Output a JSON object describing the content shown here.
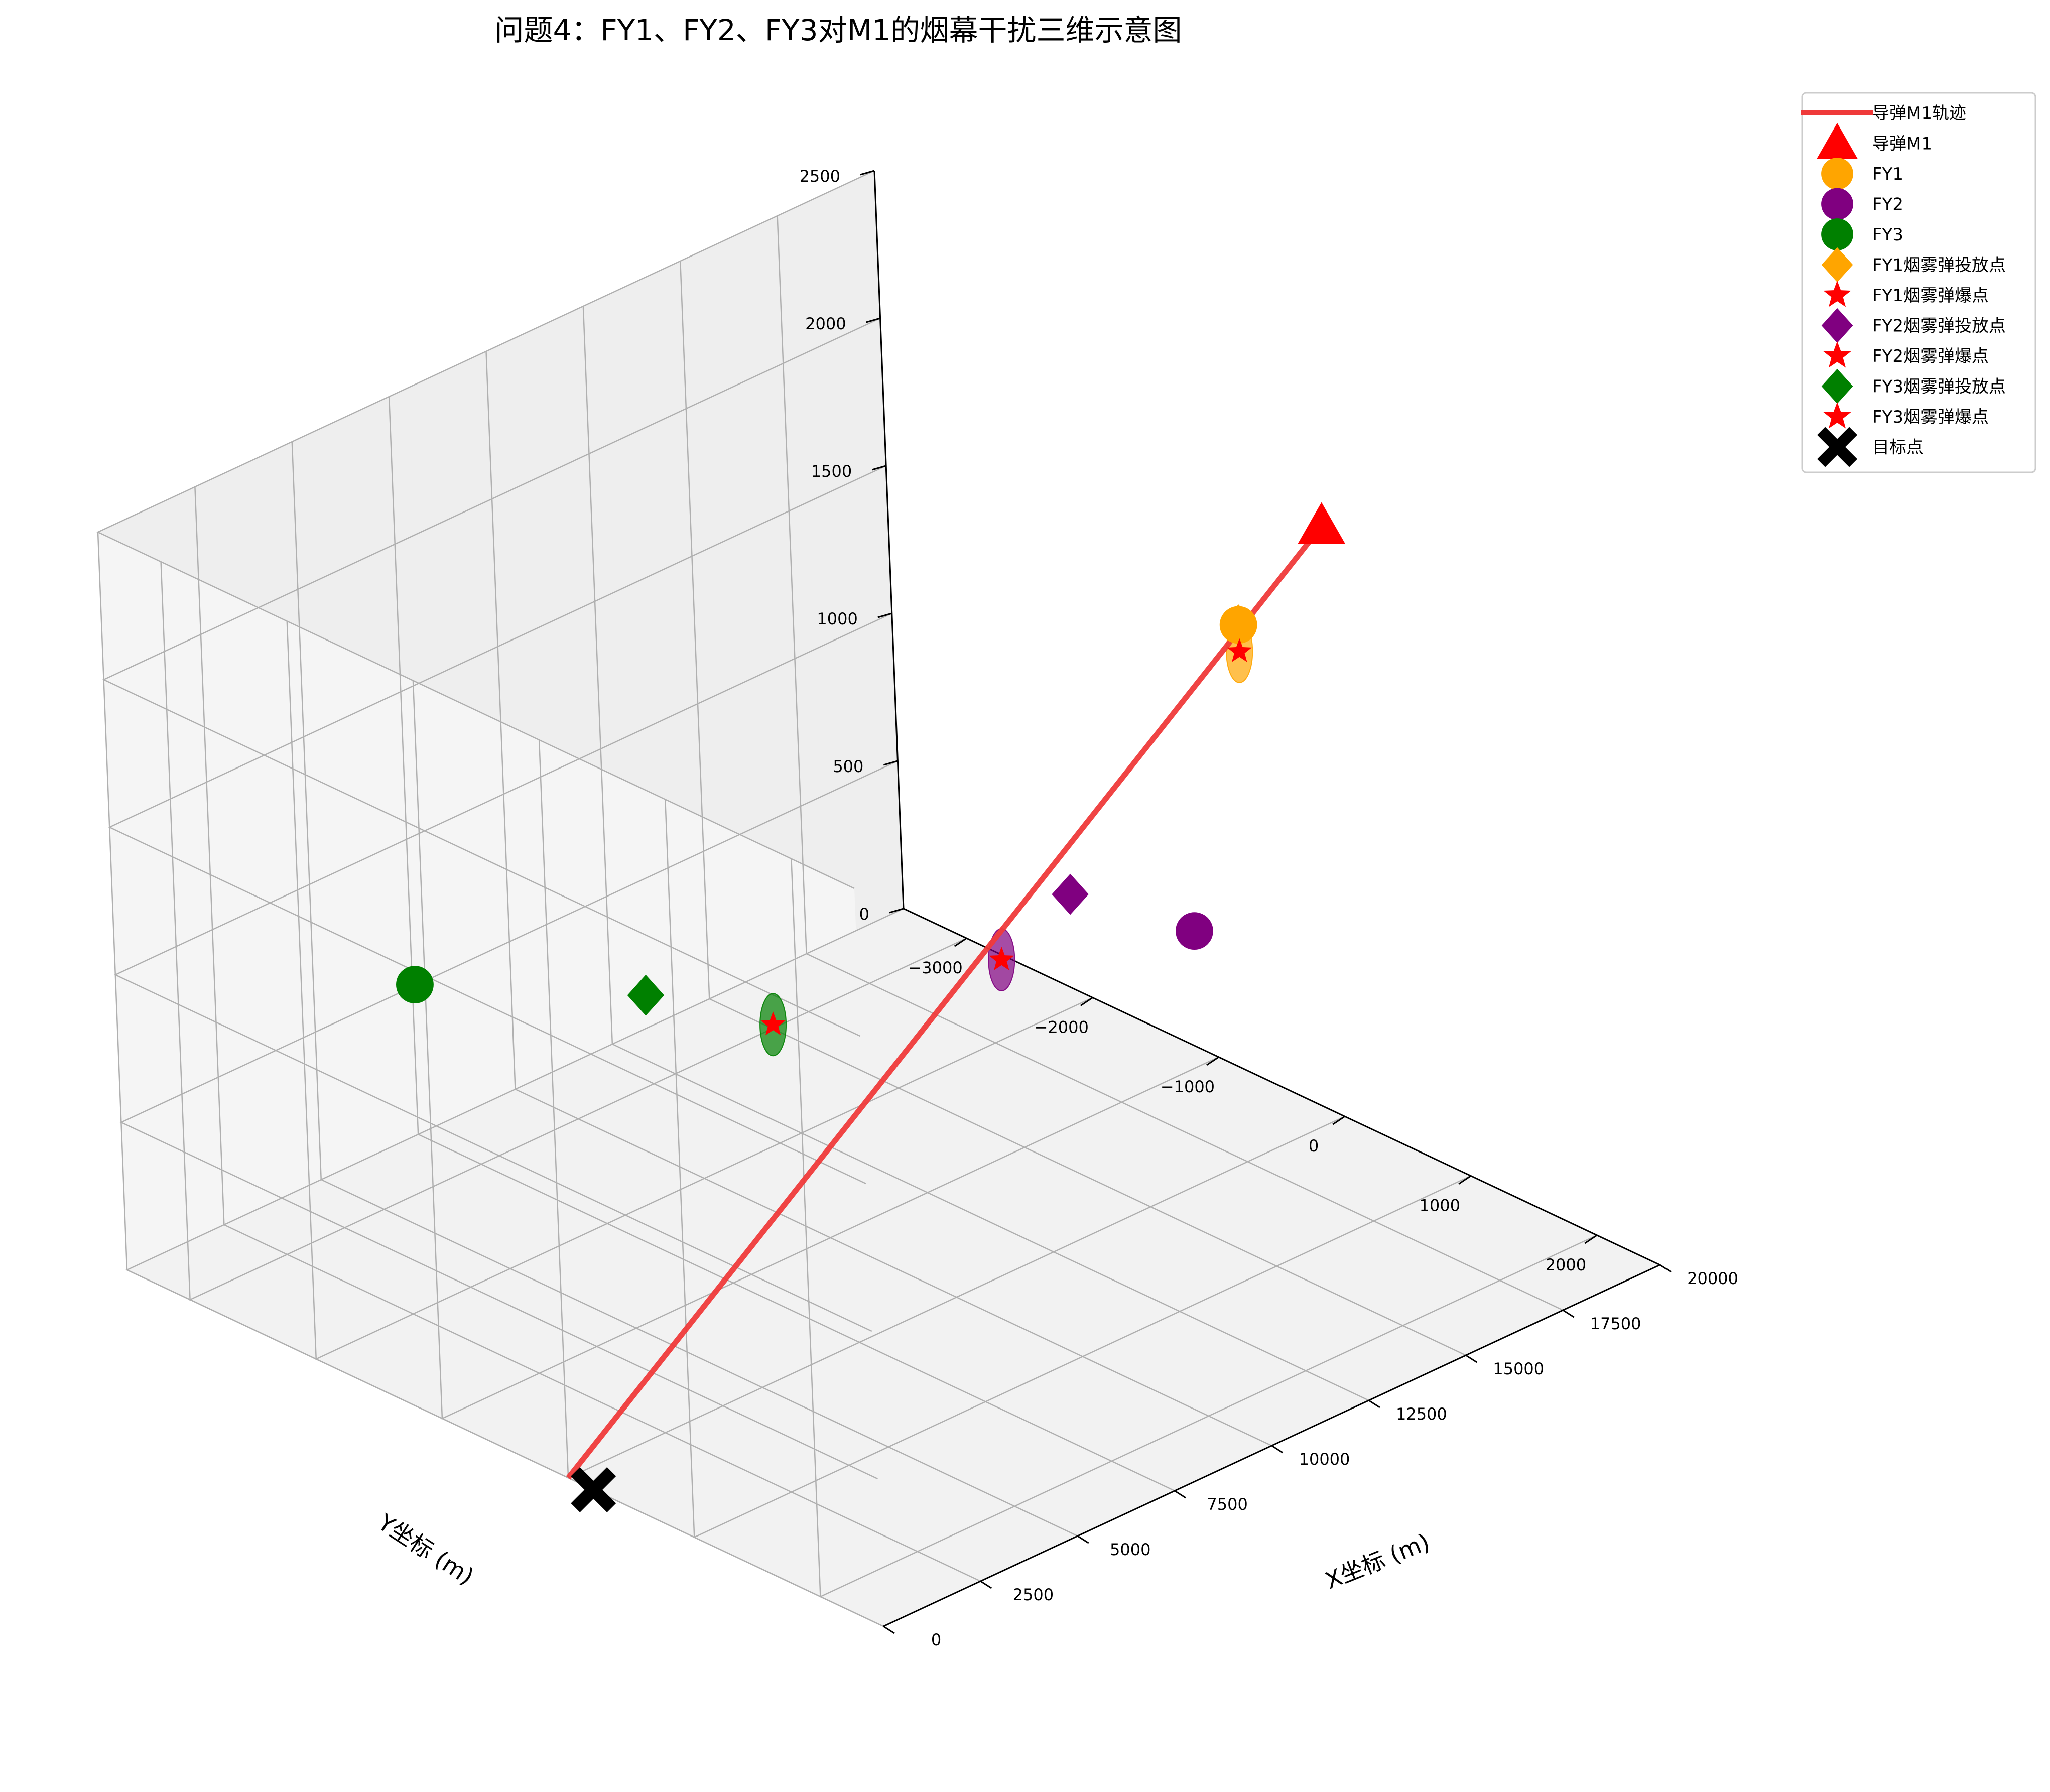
{
  "chart_data": {
    "type": "scatter",
    "title": "问题4：FY1、FY2、FY3对M1的烟幕干扰三维示意图",
    "xlabel": "X坐标 (m)",
    "ylabel": "Y坐标 (m)",
    "zlabel": "",
    "xlim": [
      0,
      20000
    ],
    "ylim": [
      -3500,
      2500
    ],
    "zlim": [
      0,
      2500
    ],
    "xticks": [
      "0",
      "2500",
      "5000",
      "7500",
      "10000",
      "12500",
      "15000",
      "17500",
      "20000"
    ],
    "yticks": [
      "−3000",
      "−2000",
      "−1000",
      "0",
      "1000",
      "2000"
    ],
    "zticks": [
      "0",
      "500",
      "1000",
      "1500",
      "2000",
      "2500"
    ],
    "grid": true,
    "legend_position": "top-right",
    "colors": {
      "missile": "#ff0000",
      "trajectory": "#ef3a3a",
      "fy1": "#ffa500",
      "fy2": "#800080",
      "fy3": "#008000",
      "burst": "#ff0000",
      "target": "#000000"
    },
    "series": [
      {
        "name": "导弹M1轨迹",
        "marker": "line",
        "color": "#ef3a3a",
        "points": [
          [
            20000,
            0,
            2000
          ],
          [
            0,
            0,
            0
          ]
        ]
      },
      {
        "name": "导弹M1",
        "marker": "triangle",
        "color": "#ff0000",
        "points": [
          [
            20000,
            0,
            2000
          ]
        ]
      },
      {
        "name": "FY1",
        "marker": "circle",
        "color": "#ffa500",
        "points": [
          [
            17800,
            0,
            1800
          ]
        ]
      },
      {
        "name": "FY2",
        "marker": "circle",
        "color": "#800080",
        "points": [
          [
            12000,
            1400,
            1400
          ]
        ]
      },
      {
        "name": "FY3",
        "marker": "circle",
        "color": "#008000",
        "points": [
          [
            6000,
            -3000,
            700
          ]
        ]
      },
      {
        "name": "FY1烟雾弹投放点",
        "marker": "diamond",
        "color": "#ffa500",
        "points": [
          [
            17800,
            0,
            1800
          ]
        ]
      },
      {
        "name": "FY1烟雾弹爆点",
        "marker": "star",
        "color": "#ff0000",
        "points": [
          [
            17800,
            0,
            1710
          ]
        ]
      },
      {
        "name": "FY2烟雾弹投放点",
        "marker": "diamond",
        "color": "#800080",
        "points": [
          [
            11400,
            600,
            1400
          ]
        ]
      },
      {
        "name": "FY2烟雾弹爆点",
        "marker": "star",
        "color": "#ff0000",
        "points": [
          [
            11100,
            120,
            1100
          ]
        ]
      },
      {
        "name": "FY3烟雾弹投放点",
        "marker": "diamond",
        "color": "#008000",
        "points": [
          [
            8700,
            -2000,
            700
          ]
        ]
      },
      {
        "name": "FY3烟雾弹爆点",
        "marker": "star",
        "color": "#ff0000",
        "points": [
          [
            9700,
            -1300,
            680
          ]
        ]
      },
      {
        "name": "目标点",
        "marker": "x",
        "color": "#000000",
        "points": [
          [
            0,
            200,
            0
          ]
        ]
      }
    ],
    "smoke_clouds": [
      {
        "owner": "FY1",
        "color": "#ffa500",
        "center": [
          17800,
          0,
          1710
        ],
        "radius": 10
      },
      {
        "owner": "FY2",
        "color": "#800080",
        "center": [
          11100,
          120,
          1100
        ],
        "radius": 10
      },
      {
        "owner": "FY3",
        "color": "#008000",
        "center": [
          9700,
          -1300,
          680
        ],
        "radius": 10
      }
    ]
  }
}
